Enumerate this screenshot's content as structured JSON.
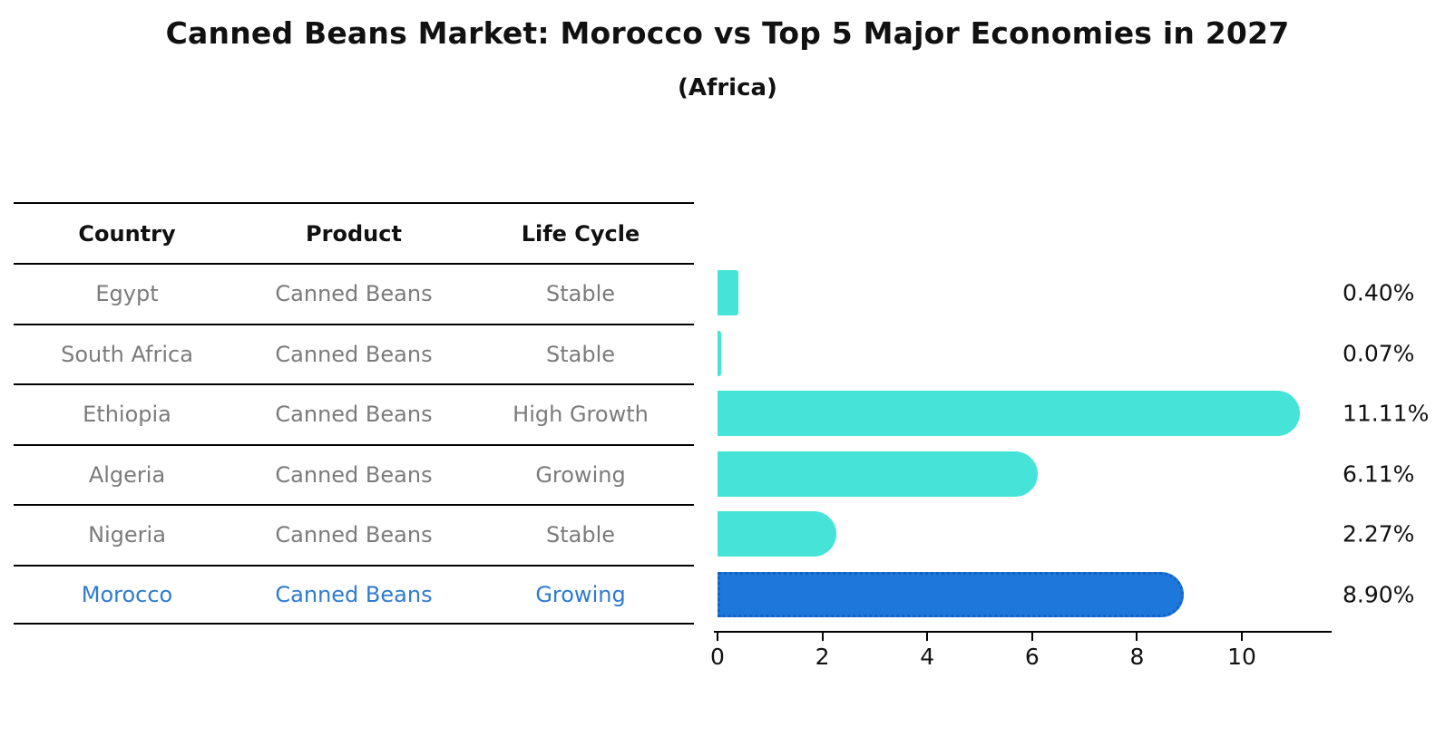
{
  "title": "Canned Beans Market: Morocco vs Top 5 Major Economies in 2027",
  "subtitle": "(Africa)",
  "table": {
    "headers": [
      "Country",
      "Product",
      "Life Cycle"
    ],
    "rows": [
      {
        "country": "Egypt",
        "product": "Canned Beans",
        "life_cycle": "Stable"
      },
      {
        "country": "South Africa",
        "product": "Canned Beans",
        "life_cycle": "Stable"
      },
      {
        "country": "Ethiopia",
        "product": "Canned Beans",
        "life_cycle": "High Growth"
      },
      {
        "country": "Algeria",
        "product": "Canned Beans",
        "life_cycle": "Growing"
      },
      {
        "country": "Nigeria",
        "product": "Canned Beans",
        "life_cycle": "Stable"
      },
      {
        "country": "Morocco",
        "product": "Canned Beans",
        "life_cycle": "Growing"
      }
    ]
  },
  "chart_data": {
    "type": "bar",
    "orientation": "horizontal",
    "title": "Canned Beans Market: Morocco vs Top 5 Major Economies in 2027 (Africa)",
    "categories": [
      "Egypt",
      "South Africa",
      "Ethiopia",
      "Algeria",
      "Nigeria",
      "Morocco"
    ],
    "values": [
      0.4,
      0.07,
      11.11,
      6.11,
      2.27,
      8.9
    ],
    "value_labels": [
      "0.40%",
      "0.07%",
      "11.11%",
      "6.11%",
      "2.27%",
      "8.90%"
    ],
    "xlabel": "",
    "ylabel": "",
    "xlim": [
      0,
      11.75
    ],
    "xticks": [
      0,
      2,
      4,
      6,
      8,
      10
    ],
    "xtick_labels": [
      "0",
      "2",
      "4",
      "6",
      "8",
      "10"
    ],
    "grid": false,
    "legend": false,
    "bar_color": "#45e3d8",
    "highlight_color": "#1e77db",
    "highlight_text_color": "#2e7bd2",
    "highlight_index": 5,
    "highlight_category": "Morocco"
  }
}
